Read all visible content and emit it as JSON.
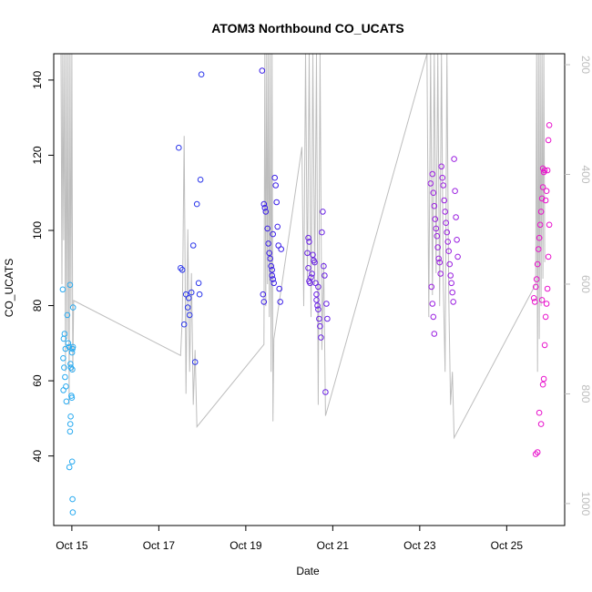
{
  "chart_data": {
    "type": "scatter",
    "title": "ATOM3 Northbound CO_UCATS",
    "xlabel": "Date",
    "ylabel": "CO_UCATS",
    "x_axis_unit": "date",
    "xlim": [
      "2016-10-14T14:00",
      "2016-10-26T08:00"
    ],
    "ylim": [
      21.5,
      147
    ],
    "x_ticks": [
      {
        "date": "2016-10-15T00:00",
        "label": "Oct 15"
      },
      {
        "date": "2016-10-17T00:00",
        "label": "Oct 17"
      },
      {
        "date": "2016-10-19T00:00",
        "label": "Oct 19"
      },
      {
        "date": "2016-10-21T00:00",
        "label": "Oct 21"
      },
      {
        "date": "2016-10-23T00:00",
        "label": "Oct 23"
      },
      {
        "date": "2016-10-25T00:00",
        "label": "Oct 25"
      }
    ],
    "y_ticks": [
      40,
      60,
      80,
      100,
      120,
      140
    ],
    "secondary_axis": {
      "note": "right axis, reversed (pressure-like), grey",
      "ticks": [
        200,
        400,
        600,
        800,
        1000
      ],
      "range_top": 180,
      "range_bottom": 1040,
      "color": "#bdbdbd"
    },
    "colors": {
      "point_gradient": [
        "#29aaf0",
        "#1f1fe0",
        "#7a22e6",
        "#c01ed9",
        "#ee11c8"
      ],
      "grey_line": "#bdbdbd",
      "axis": "#000000"
    },
    "grid": false,
    "series": [
      {
        "color": "#29aaf0",
        "points": [
          [
            "2016-10-14T19:00",
            84.3
          ],
          [
            "2016-10-14T19:30",
            71.2
          ],
          [
            "2016-10-14T20:00",
            72.5
          ],
          [
            "2016-10-14T20:30",
            68.5
          ],
          [
            "2016-10-14T19:15",
            66.0
          ],
          [
            "2016-10-14T19:45",
            63.5
          ],
          [
            "2016-10-14T20:15",
            61.0
          ],
          [
            "2016-10-14T20:45",
            58.5
          ],
          [
            "2016-10-14T19:20",
            57.5
          ],
          [
            "2016-10-14T21:00",
            54.5
          ],
          [
            "2016-10-14T21:30",
            77.5
          ],
          [
            "2016-10-14T22:00",
            70.0
          ],
          [
            "2016-10-14T22:30",
            69.0
          ],
          [
            "2016-10-14T23:00",
            85.5
          ],
          [
            "2016-10-14T23:15",
            64.5
          ],
          [
            "2016-10-14T23:30",
            63.5
          ],
          [
            "2016-10-14T23:45",
            56.0
          ],
          [
            "2016-10-15T00:00",
            55.5
          ],
          [
            "2016-10-14T23:20",
            50.5
          ],
          [
            "2016-10-14T23:10",
            48.5
          ],
          [
            "2016-10-14T23:00",
            46.5
          ],
          [
            "2016-10-14T22:40",
            37.0
          ],
          [
            "2016-10-15T00:10",
            38.5
          ],
          [
            "2016-10-15T00:20",
            28.5
          ],
          [
            "2016-10-15T00:30",
            25.0
          ],
          [
            "2016-10-15T00:40",
            79.5
          ],
          [
            "2016-10-15T00:20",
            68.5
          ],
          [
            "2016-10-15T00:35",
            69.0
          ],
          [
            "2016-10-15T00:05",
            67.5
          ],
          [
            "2016-10-15T00:15",
            63.0
          ]
        ]
      },
      {
        "color": "#2b36ea",
        "points": [
          [
            "2016-10-17T11:00",
            122.0
          ],
          [
            "2016-10-17T12:00",
            90.0
          ],
          [
            "2016-10-17T13:00",
            89.5
          ],
          [
            "2016-10-17T14:00",
            75.0
          ],
          [
            "2016-10-17T15:00",
            83.0
          ],
          [
            "2016-10-17T16:00",
            79.5
          ],
          [
            "2016-10-17T16:30",
            82.0
          ],
          [
            "2016-10-17T17:00",
            77.5
          ],
          [
            "2016-10-17T18:00",
            83.5
          ],
          [
            "2016-10-17T19:00",
            96.0
          ],
          [
            "2016-10-17T20:00",
            65.0
          ],
          [
            "2016-10-17T21:00",
            107.0
          ],
          [
            "2016-10-17T22:00",
            86.0
          ],
          [
            "2016-10-17T22:30",
            83.0
          ],
          [
            "2016-10-17T23:00",
            113.5
          ],
          [
            "2016-10-17T23:30",
            141.5
          ]
        ]
      },
      {
        "color": "#3b1fe8",
        "points": [
          [
            "2016-10-19T09:00",
            142.5
          ],
          [
            "2016-10-19T10:00",
            107.0
          ],
          [
            "2016-10-19T10:30",
            106.0
          ],
          [
            "2016-10-19T11:00",
            105.0
          ],
          [
            "2016-10-19T12:00",
            100.5
          ],
          [
            "2016-10-19T12:30",
            96.5
          ],
          [
            "2016-10-19T13:00",
            94.0
          ],
          [
            "2016-10-19T13:30",
            92.5
          ],
          [
            "2016-10-19T14:00",
            90.5
          ],
          [
            "2016-10-19T14:30",
            89.5
          ],
          [
            "2016-10-19T15:00",
            87.0
          ],
          [
            "2016-10-19T15:30",
            86.0
          ],
          [
            "2016-10-19T09:30",
            83.0
          ],
          [
            "2016-10-19T10:00",
            81.0
          ],
          [
            "2016-10-19T16:00",
            114.0
          ],
          [
            "2016-10-19T16:30",
            112.0
          ],
          [
            "2016-10-19T17:00",
            107.5
          ],
          [
            "2016-10-19T17:30",
            101.0
          ],
          [
            "2016-10-19T18:00",
            96.0
          ],
          [
            "2016-10-19T18:30",
            84.5
          ],
          [
            "2016-10-19T19:00",
            81.0
          ],
          [
            "2016-10-19T19:30",
            95.0
          ],
          [
            "2016-10-19T14:30",
            88.0
          ],
          [
            "2016-10-19T15:00",
            99.0
          ]
        ]
      },
      {
        "color": "#6a22e4",
        "points": [
          [
            "2016-10-20T10:00",
            94.0
          ],
          [
            "2016-10-20T10:30",
            90.0
          ],
          [
            "2016-10-20T11:00",
            86.5
          ],
          [
            "2016-10-20T11:30",
            86.0
          ],
          [
            "2016-10-20T12:00",
            87.5
          ],
          [
            "2016-10-20T12:30",
            88.5
          ],
          [
            "2016-10-20T13:00",
            93.5
          ],
          [
            "2016-10-20T13:30",
            92.0
          ],
          [
            "2016-10-20T14:00",
            91.5
          ],
          [
            "2016-10-20T10:30",
            98.0
          ],
          [
            "2016-10-20T11:00",
            97.0
          ],
          [
            "2016-10-20T14:30",
            86.0
          ],
          [
            "2016-10-20T15:00",
            81.5
          ],
          [
            "2016-10-20T15:30",
            80.0
          ],
          [
            "2016-10-20T16:00",
            79.0
          ],
          [
            "2016-10-20T16:30",
            76.5
          ],
          [
            "2016-10-20T17:00",
            74.5
          ],
          [
            "2016-10-20T17:30",
            71.5
          ],
          [
            "2016-10-20T18:00",
            99.5
          ],
          [
            "2016-10-20T18:30",
            105.0
          ],
          [
            "2016-10-20T19:00",
            90.5
          ],
          [
            "2016-10-20T19:30",
            88.0
          ],
          [
            "2016-10-20T20:00",
            57.0
          ],
          [
            "2016-10-20T20:30",
            80.5
          ],
          [
            "2016-10-20T21:00",
            76.5
          ],
          [
            "2016-10-20T15:00",
            83.0
          ],
          [
            "2016-10-20T16:00",
            85.0
          ]
        ]
      },
      {
        "color": "#9a1fe0",
        "points": [
          [
            "2016-10-23T06:00",
            112.5
          ],
          [
            "2016-10-23T07:00",
            115.0
          ],
          [
            "2016-10-23T07:30",
            110.0
          ],
          [
            "2016-10-23T08:00",
            106.5
          ],
          [
            "2016-10-23T08:30",
            103.0
          ],
          [
            "2016-10-23T09:00",
            100.5
          ],
          [
            "2016-10-23T09:30",
            98.5
          ],
          [
            "2016-10-23T10:00",
            95.5
          ],
          [
            "2016-10-23T10:30",
            92.5
          ],
          [
            "2016-10-23T11:00",
            91.5
          ],
          [
            "2016-10-23T11:30",
            88.5
          ],
          [
            "2016-10-23T06:30",
            85.0
          ],
          [
            "2016-10-23T07:00",
            80.5
          ],
          [
            "2016-10-23T07:30",
            77.0
          ],
          [
            "2016-10-23T08:00",
            72.5
          ],
          [
            "2016-10-23T12:00",
            117.0
          ],
          [
            "2016-10-23T12:30",
            114.0
          ],
          [
            "2016-10-23T13:00",
            112.0
          ],
          [
            "2016-10-23T13:30",
            108.0
          ],
          [
            "2016-10-23T14:00",
            105.0
          ],
          [
            "2016-10-23T14:30",
            102.0
          ],
          [
            "2016-10-23T15:00",
            99.5
          ],
          [
            "2016-10-23T15:30",
            97.0
          ],
          [
            "2016-10-23T16:00",
            94.5
          ],
          [
            "2016-10-23T16:30",
            91.0
          ],
          [
            "2016-10-23T17:00",
            88.0
          ],
          [
            "2016-10-23T17:30",
            86.0
          ],
          [
            "2016-10-23T18:00",
            83.5
          ],
          [
            "2016-10-23T18:30",
            81.0
          ],
          [
            "2016-10-23T19:00",
            119.0
          ],
          [
            "2016-10-23T19:30",
            110.5
          ],
          [
            "2016-10-23T20:00",
            103.5
          ],
          [
            "2016-10-23T20:30",
            97.5
          ],
          [
            "2016-10-23T21:00",
            93.0
          ]
        ]
      },
      {
        "color": "#e812cc",
        "points": [
          [
            "2016-10-25T15:00",
            82.0
          ],
          [
            "2016-10-25T15:30",
            81.0
          ],
          [
            "2016-10-25T16:00",
            85.0
          ],
          [
            "2016-10-25T16:30",
            87.0
          ],
          [
            "2016-10-25T17:00",
            91.0
          ],
          [
            "2016-10-25T17:30",
            95.0
          ],
          [
            "2016-10-25T18:00",
            98.0
          ],
          [
            "2016-10-25T18:30",
            101.5
          ],
          [
            "2016-10-25T19:00",
            105.0
          ],
          [
            "2016-10-25T19:30",
            108.5
          ],
          [
            "2016-10-25T20:00",
            111.5
          ],
          [
            "2016-10-25T20:30",
            115.5
          ],
          [
            "2016-10-25T21:00",
            116.0
          ],
          [
            "2016-10-25T16:00",
            40.5
          ],
          [
            "2016-10-25T17:00",
            41.0
          ],
          [
            "2016-10-25T18:00",
            51.5
          ],
          [
            "2016-10-25T19:00",
            48.5
          ],
          [
            "2016-10-25T20:00",
            59.0
          ],
          [
            "2016-10-25T20:30",
            60.5
          ],
          [
            "2016-10-25T21:00",
            69.5
          ],
          [
            "2016-10-25T21:30",
            77.0
          ],
          [
            "2016-10-25T22:00",
            80.5
          ],
          [
            "2016-10-25T22:30",
            84.5
          ],
          [
            "2016-10-25T23:00",
            93.0
          ],
          [
            "2016-10-25T23:30",
            101.5
          ],
          [
            "2016-10-25T21:30",
            108.0
          ],
          [
            "2016-10-25T22:00",
            110.5
          ],
          [
            "2016-10-25T22:30",
            116.0
          ],
          [
            "2016-10-25T23:00",
            124.0
          ],
          [
            "2016-10-25T23:30",
            128.0
          ],
          [
            "2016-10-25T19:30",
            81.5
          ],
          [
            "2016-10-25T20:00",
            116.5
          ]
        ]
      }
    ],
    "secondary_series": {
      "color": "#bdbdbd",
      "note": "grey altitude/pressure trace on right axis",
      "path": [
        [
          "2016-10-14T18:00",
          180
        ],
        [
          "2016-10-14T18:30",
          600
        ],
        [
          "2016-10-14T19:00",
          180
        ],
        [
          "2016-10-14T19:30",
          520
        ],
        [
          "2016-10-14T20:00",
          180
        ],
        [
          "2016-10-14T20:30",
          760
        ],
        [
          "2016-10-14T21:00",
          180
        ],
        [
          "2016-10-14T21:30",
          700
        ],
        [
          "2016-10-14T22:00",
          180
        ],
        [
          "2016-10-14T22:30",
          820
        ],
        [
          "2016-10-14T23:00",
          180
        ],
        [
          "2016-10-14T23:30",
          640
        ],
        [
          "2016-10-15T00:00",
          180
        ],
        [
          "2016-10-15T00:30",
          760
        ],
        [
          "2016-10-15T01:00",
          630
        ],
        [
          "2016-10-17T12:00",
          730
        ],
        [
          "2016-10-17T13:00",
          660
        ],
        [
          "2016-10-17T14:00",
          330
        ],
        [
          "2016-10-17T15:00",
          800
        ],
        [
          "2016-10-17T16:00",
          500
        ],
        [
          "2016-10-17T17:00",
          760
        ],
        [
          "2016-10-17T18:00",
          580
        ],
        [
          "2016-10-17T19:00",
          820
        ],
        [
          "2016-10-17T20:00",
          720
        ],
        [
          "2016-10-17T21:00",
          860
        ],
        [
          "2016-10-19T10:00",
          710
        ],
        [
          "2016-10-19T10:30",
          180
        ],
        [
          "2016-10-19T11:00",
          640
        ],
        [
          "2016-10-19T11:30",
          180
        ],
        [
          "2016-10-19T12:00",
          600
        ],
        [
          "2016-10-19T12:30",
          180
        ],
        [
          "2016-10-19T13:00",
          660
        ],
        [
          "2016-10-19T13:30",
          180
        ],
        [
          "2016-10-19T14:00",
          760
        ],
        [
          "2016-10-19T14:30",
          180
        ],
        [
          "2016-10-19T15:00",
          850
        ],
        [
          "2016-10-19T15:30",
          700
        ],
        [
          "2016-10-20T07:00",
          350
        ],
        [
          "2016-10-20T08:00",
          640
        ],
        [
          "2016-10-20T09:00",
          180
        ],
        [
          "2016-10-20T10:00",
          600
        ],
        [
          "2016-10-20T11:00",
          180
        ],
        [
          "2016-10-20T12:00",
          660
        ],
        [
          "2016-10-20T13:00",
          180
        ],
        [
          "2016-10-20T14:00",
          600
        ],
        [
          "2016-10-20T15:00",
          180
        ],
        [
          "2016-10-20T16:00",
          820
        ],
        [
          "2016-10-20T17:00",
          180
        ],
        [
          "2016-10-20T18:00",
          720
        ],
        [
          "2016-10-20T19:00",
          560
        ],
        [
          "2016-10-20T20:00",
          840
        ],
        [
          "2016-10-23T04:00",
          180
        ],
        [
          "2016-10-23T05:00",
          660
        ],
        [
          "2016-10-23T06:00",
          180
        ],
        [
          "2016-10-23T07:00",
          620
        ],
        [
          "2016-10-23T08:00",
          180
        ],
        [
          "2016-10-23T09:00",
          580
        ],
        [
          "2016-10-23T10:00",
          180
        ],
        [
          "2016-10-23T11:00",
          640
        ],
        [
          "2016-10-23T12:00",
          180
        ],
        [
          "2016-10-23T13:00",
          600
        ],
        [
          "2016-10-23T14:00",
          760
        ],
        [
          "2016-10-23T15:00",
          180
        ],
        [
          "2016-10-23T16:00",
          620
        ],
        [
          "2016-10-23T17:00",
          820
        ],
        [
          "2016-10-23T18:00",
          760
        ],
        [
          "2016-10-23T19:00",
          880
        ],
        [
          "2016-10-25T16:00",
          600
        ],
        [
          "2016-10-25T16:30",
          180
        ],
        [
          "2016-10-25T17:00",
          760
        ],
        [
          "2016-10-25T17:30",
          180
        ],
        [
          "2016-10-25T18:00",
          700
        ],
        [
          "2016-10-25T18:30",
          180
        ],
        [
          "2016-10-25T19:00",
          640
        ],
        [
          "2016-10-25T19:30",
          180
        ],
        [
          "2016-10-25T20:00",
          590
        ],
        [
          "2016-10-25T20:30",
          180
        ],
        [
          "2016-10-25T21:00",
          560
        ]
      ]
    }
  }
}
